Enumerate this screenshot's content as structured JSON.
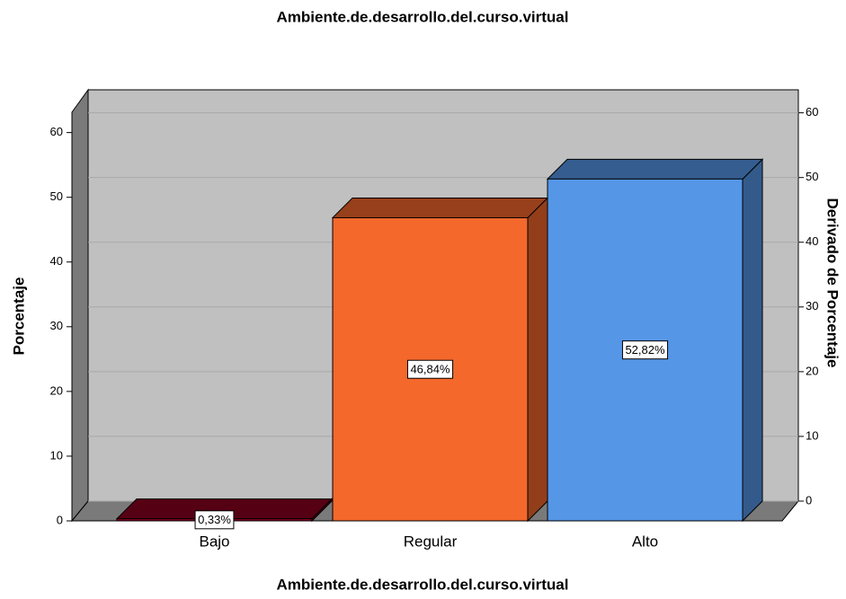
{
  "chart_data": {
    "type": "bar3d",
    "title": "Ambiente.de.desarrollo.del.curso.virtual",
    "x_label": "Ambiente.de.desarrollo.del.curso.virtual",
    "y_label": "Porcentaje",
    "y2_label": "Derivado de Porcentaje",
    "categories": [
      "Bajo",
      "Regular",
      "Alto"
    ],
    "values": [
      0.33,
      46.84,
      52.82
    ],
    "value_labels": [
      "0,33%",
      "46,84%",
      "52,82%"
    ],
    "colors": [
      "#8b0021",
      "#f4682c",
      "#5596e6"
    ],
    "ylim": [
      0,
      63
    ],
    "yticks": [
      0,
      10,
      20,
      30,
      40,
      50,
      60
    ],
    "y2lim": [
      0,
      63
    ],
    "y2ticks": [
      0,
      10,
      20,
      30,
      40,
      50,
      60
    ],
    "grid": true
  }
}
